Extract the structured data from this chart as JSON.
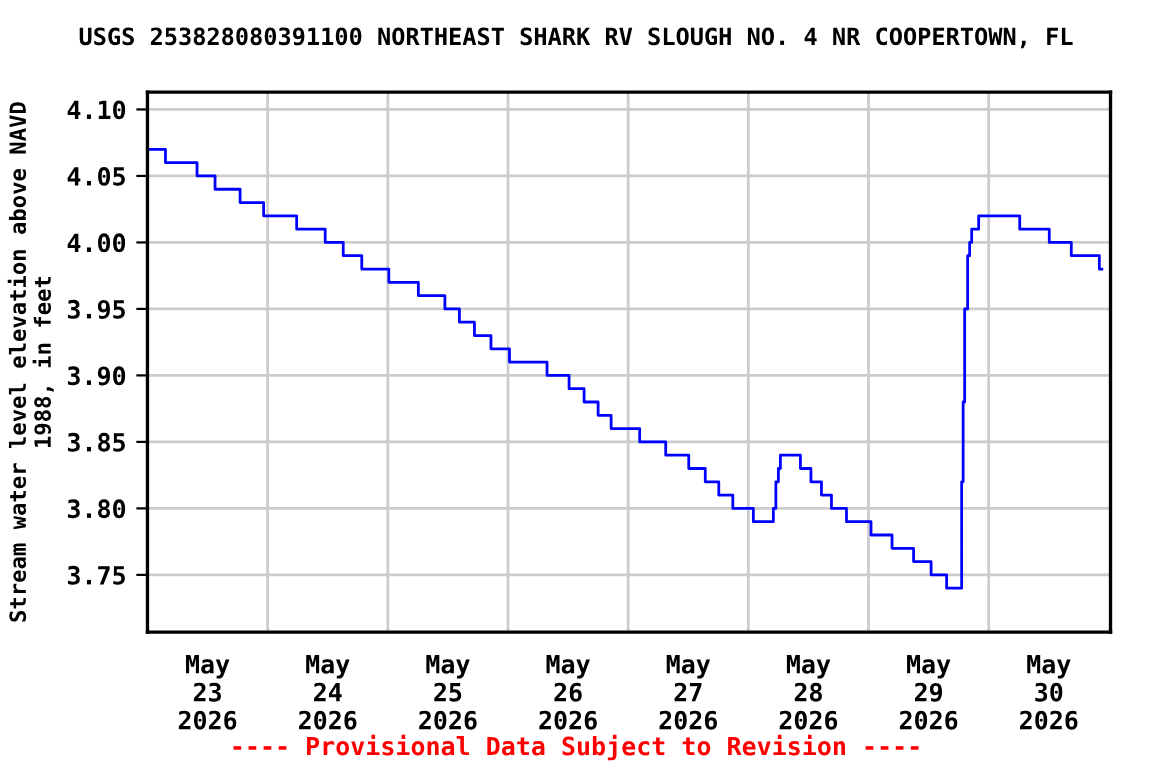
{
  "chart_data": {
    "type": "step",
    "title": "USGS 253828080391100 NORTHEAST SHARK RV SLOUGH NO. 4 NR COOPERTOWN, FL",
    "ylabel": "Stream water level elevation above NAVD\n1988, in feet",
    "annotations": [
      "---- Provisional Data Subject to Revision ----"
    ],
    "x": [
      "2026-05-23T00:00",
      "2026-05-23T03:36",
      "2026-05-23T09:54",
      "2026-05-23T13:30",
      "2026-05-23T18:30",
      "2026-05-23T23:12",
      "2026-05-24T05:48",
      "2026-05-24T11:30",
      "2026-05-24T15:06",
      "2026-05-24T18:48",
      "2026-05-25T00:12",
      "2026-05-25T06:06",
      "2026-05-25T11:24",
      "2026-05-25T14:18",
      "2026-05-25T17:18",
      "2026-05-25T20:36",
      "2026-05-26T00:18",
      "2026-05-26T07:48",
      "2026-05-26T12:12",
      "2026-05-26T15:12",
      "2026-05-26T18:00",
      "2026-05-26T20:36",
      "2026-05-27T02:18",
      "2026-05-27T07:30",
      "2026-05-27T12:06",
      "2026-05-27T15:24",
      "2026-05-27T18:06",
      "2026-05-27T20:54",
      "2026-05-28T01:00",
      "2026-05-28T05:00",
      "2026-05-28T05:30",
      "2026-05-28T06:00",
      "2026-05-28T06:24",
      "2026-05-28T10:24",
      "2026-05-28T12:30",
      "2026-05-28T14:36",
      "2026-05-28T16:36",
      "2026-05-28T19:36",
      "2026-05-29T00:30",
      "2026-05-29T04:42",
      "2026-05-29T09:00",
      "2026-05-29T12:30",
      "2026-05-29T15:36",
      "2026-05-29T18:36",
      "2026-05-29T18:54",
      "2026-05-29T19:12",
      "2026-05-29T19:48",
      "2026-05-29T20:12",
      "2026-05-29T20:36",
      "2026-05-29T22:00",
      "2026-05-30T06:12",
      "2026-05-30T12:06",
      "2026-05-30T16:30",
      "2026-05-30T22:06",
      "2026-05-30T22:36"
    ],
    "series": [
      {
        "color": "#0000ff",
        "values": [
          4.07,
          4.06,
          4.05,
          4.04,
          4.03,
          4.02,
          4.01,
          4.0,
          3.99,
          3.98,
          3.97,
          3.96,
          3.95,
          3.94,
          3.93,
          3.92,
          3.91,
          3.9,
          3.89,
          3.88,
          3.87,
          3.86,
          3.85,
          3.84,
          3.83,
          3.82,
          3.81,
          3.8,
          3.79,
          3.8,
          3.82,
          3.83,
          3.84,
          3.83,
          3.82,
          3.81,
          3.8,
          3.79,
          3.78,
          3.77,
          3.76,
          3.75,
          3.74,
          3.82,
          3.88,
          3.95,
          3.99,
          4.0,
          4.01,
          4.02,
          4.01,
          4.0,
          3.99,
          3.98,
          3.98
        ]
      }
    ],
    "xlim": [
      "2026-05-23T00:00",
      "2026-05-31T00:20"
    ],
    "xticks": [
      {
        "value": "2026-05-23T12:00",
        "label": "May\n23\n2026"
      },
      {
        "value": "2026-05-24T00:00",
        "label": null
      },
      {
        "value": "2026-05-24T12:00",
        "label": "May\n24\n2026"
      },
      {
        "value": "2026-05-25T00:00",
        "label": null
      },
      {
        "value": "2026-05-25T12:00",
        "label": "May\n25\n2026"
      },
      {
        "value": "2026-05-26T00:00",
        "label": null
      },
      {
        "value": "2026-05-26T12:00",
        "label": "May\n26\n2026"
      },
      {
        "value": "2026-05-27T00:00",
        "label": null
      },
      {
        "value": "2026-05-27T12:00",
        "label": "May\n27\n2026"
      },
      {
        "value": "2026-05-28T00:00",
        "label": null
      },
      {
        "value": "2026-05-28T12:00",
        "label": "May\n28\n2026"
      },
      {
        "value": "2026-05-29T00:00",
        "label": null
      },
      {
        "value": "2026-05-29T12:00",
        "label": "May\n29\n2026"
      },
      {
        "value": "2026-05-30T00:00",
        "label": null
      },
      {
        "value": "2026-05-30T12:00",
        "label": "May\n30\n2026"
      }
    ],
    "ylim": [
      3.707,
      4.113
    ],
    "yticks": [
      {
        "value": 3.75,
        "label": "3.75"
      },
      {
        "value": 3.8,
        "label": "3.80"
      },
      {
        "value": 3.85,
        "label": "3.85"
      },
      {
        "value": 3.9,
        "label": "3.90"
      },
      {
        "value": 3.95,
        "label": "3.95"
      },
      {
        "value": 4.0,
        "label": "4.00"
      },
      {
        "value": 4.05,
        "label": "4.05"
      },
      {
        "value": 4.1,
        "label": "4.10"
      }
    ],
    "grid": true
  }
}
